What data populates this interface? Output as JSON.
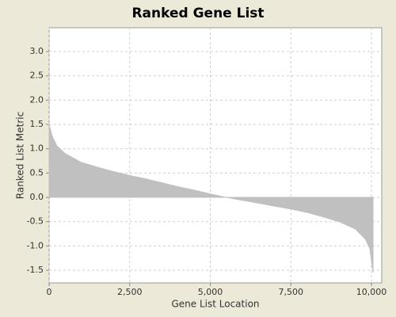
{
  "chart_data": {
    "type": "area",
    "title": "Ranked Gene List",
    "x_label": "Gene List Location",
    "y_label": "Ranked List Metric",
    "x": [
      0,
      100,
      250,
      500,
      1000,
      1500,
      2000,
      2500,
      3000,
      3500,
      4000,
      4500,
      5000,
      5500,
      6000,
      6500,
      7000,
      7500,
      8000,
      8500,
      9000,
      9500,
      9800,
      9950,
      10050
    ],
    "values": [
      1.5,
      1.25,
      1.05,
      0.9,
      0.72,
      0.62,
      0.53,
      0.45,
      0.38,
      0.3,
      0.22,
      0.15,
      0.07,
      0.0,
      -0.06,
      -0.12,
      -0.18,
      -0.24,
      -0.31,
      -0.4,
      -0.5,
      -0.65,
      -0.85,
      -1.05,
      -1.55
    ],
    "color": "#c0c0c0",
    "xlim": [
      0,
      10320
    ],
    "ylim": [
      -1.76,
      3.49
    ],
    "xticks": [
      0,
      {
        "value": 2500,
        "label": "2,500"
      },
      {
        "value": 5000,
        "label": "5,000"
      },
      {
        "value": 7500,
        "label": "7,500"
      },
      {
        "value": 10000,
        "label": "10,000"
      }
    ],
    "yticks": [
      {
        "value": 3,
        "label": "3.0"
      },
      2.5,
      {
        "value": 2,
        "label": "2.0"
      },
      1.5,
      {
        "value": 1,
        "label": "1.0"
      },
      0.5,
      {
        "value": 0,
        "label": "0.0"
      },
      -0.5,
      {
        "value": -1,
        "label": "-1.0"
      },
      -1.5
    ],
    "grid": true
  }
}
